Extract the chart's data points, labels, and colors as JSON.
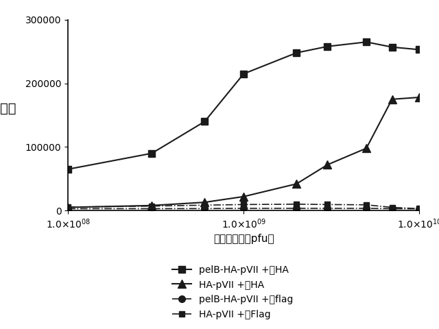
{
  "xlabel": "ファージ数（pfu）",
  "ylabel": "発光",
  "xlim_log": [
    100000000.0,
    10000000000.0
  ],
  "ylim": [
    0,
    300000
  ],
  "yticks": [
    0,
    100000,
    200000,
    300000
  ],
  "series": [
    {
      "label": "pelB-HA-pVII +抗HA",
      "x": [
        100000000.0,
        300000000.0,
        600000000.0,
        1000000000.0,
        2000000000.0,
        3000000000.0,
        5000000000.0,
        7000000000.0,
        10000000000.0
      ],
      "y": [
        65000,
        90000,
        140000,
        215000,
        248000,
        258000,
        265000,
        257000,
        253000
      ],
      "marker": "s",
      "linestyle": "-",
      "color": "#1a1a1a",
      "markersize": 7,
      "linewidth": 1.5
    },
    {
      "label": "HA-pVII +抗HA",
      "x": [
        100000000.0,
        300000000.0,
        600000000.0,
        1000000000.0,
        2000000000.0,
        3000000000.0,
        5000000000.0,
        7000000000.0,
        10000000000.0
      ],
      "y": [
        5000,
        8000,
        13000,
        22000,
        42000,
        72000,
        98000,
        175000,
        178000
      ],
      "marker": "^",
      "linestyle": "-",
      "color": "#1a1a1a",
      "markersize": 8,
      "linewidth": 1.5
    },
    {
      "label": "pelB-HA-pVII +抗flag",
      "x": [
        100000000.0,
        300000000.0,
        600000000.0,
        1000000000.0,
        2000000000.0,
        3000000000.0,
        5000000000.0,
        7000000000.0,
        10000000000.0
      ],
      "y": [
        3000,
        3000,
        3200,
        3500,
        3500,
        3500,
        3500,
        3000,
        2800
      ],
      "marker": "o",
      "linestyle": "-.",
      "color": "#1a1a1a",
      "markersize": 7,
      "linewidth": 1.2
    },
    {
      "label": "HA-pVII +抗Flag",
      "x": [
        100000000.0,
        300000000.0,
        600000000.0,
        1000000000.0,
        2000000000.0,
        3000000000.0,
        5000000000.0,
        7000000000.0,
        10000000000.0
      ],
      "y": [
        5500,
        7000,
        8500,
        9500,
        10000,
        9500,
        9000,
        5000,
        3000
      ],
      "marker": "s",
      "linestyle": "-.",
      "color": "#1a1a1a",
      "markersize": 6,
      "linewidth": 1.2
    }
  ],
  "background_color": "#ffffff"
}
